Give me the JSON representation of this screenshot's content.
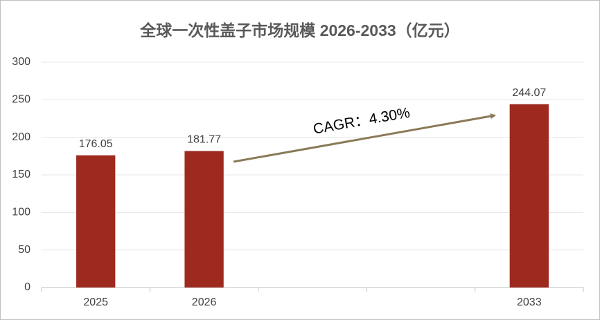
{
  "chart_data": {
    "type": "bar",
    "title": "全球一次性盖子市场规模 2026-2033（亿元）",
    "categories": [
      "2025",
      "2026",
      null,
      null,
      "2033"
    ],
    "values": [
      176.05,
      181.77,
      null,
      null,
      244.07
    ],
    "color": "#9e2a1f",
    "ylim": [
      0,
      300
    ],
    "yticks": [
      0,
      50,
      100,
      150,
      200,
      250,
      300
    ],
    "grid": true,
    "annotation": "CAGR：4.30%"
  }
}
